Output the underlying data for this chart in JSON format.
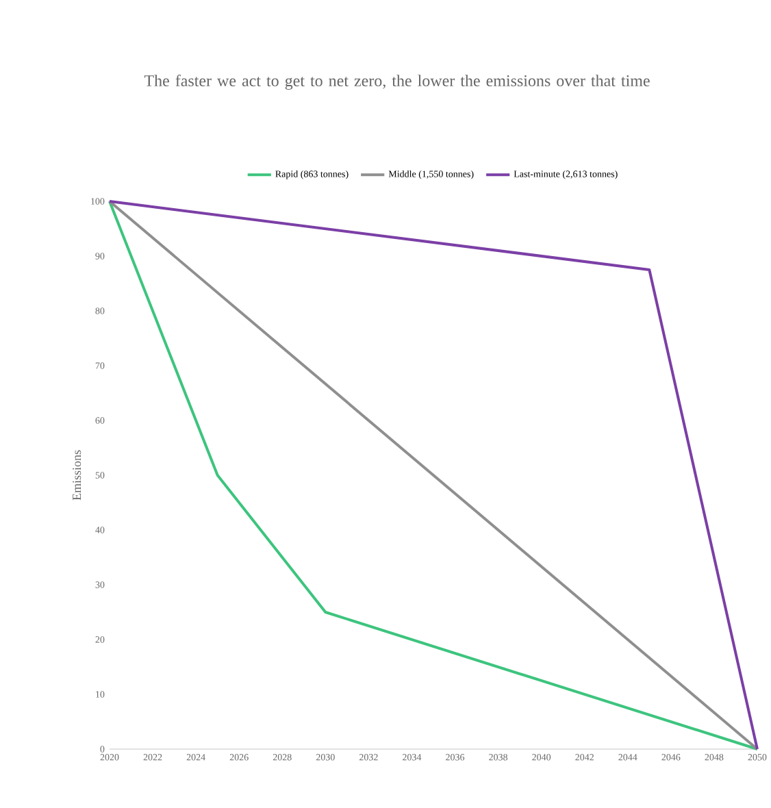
{
  "chart_data": {
    "type": "line",
    "title": "The faster we act to get to net zero, the lower the emissions over that time",
    "ylabel": "Emissions",
    "xlim": [
      2020,
      2050
    ],
    "xticks": [
      2020,
      2022,
      2024,
      2026,
      2028,
      2030,
      2032,
      2034,
      2036,
      2038,
      2040,
      2042,
      2044,
      2046,
      2048,
      2050
    ],
    "ylim": [
      0,
      100
    ],
    "yticks": [
      0,
      10,
      20,
      30,
      40,
      50,
      60,
      70,
      80,
      90,
      100
    ],
    "grid": false,
    "legend": "top",
    "marker": "none",
    "line_style": "solid",
    "series": [
      {
        "name": "Rapid (863 tonnes)",
        "color": "#3dc47e",
        "x": [
          2020,
          2025,
          2030,
          2050
        ],
        "values": [
          100,
          50,
          25,
          0
        ]
      },
      {
        "name": "Middle (1,550 tonnes)",
        "color": "#8f8f8f",
        "x": [
          2020,
          2050
        ],
        "values": [
          100,
          0
        ]
      },
      {
        "name": "Last-minute (2,613 tonnes)",
        "color": "#7b3fa6",
        "x": [
          2020,
          2045,
          2050
        ],
        "values": [
          100,
          87.5,
          0
        ]
      }
    ]
  }
}
